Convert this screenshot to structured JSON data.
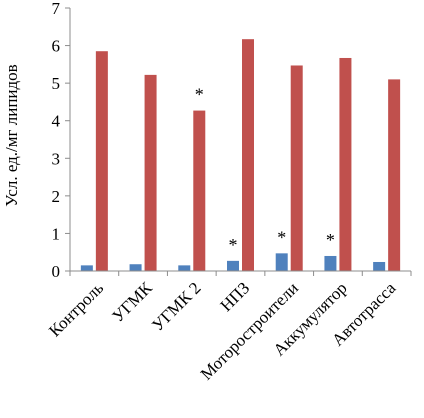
{
  "chart_data": {
    "type": "bar",
    "title": "",
    "ylabel": "Усл. ед./мг липидов",
    "xlabel": "",
    "ylim": [
      0,
      7
    ],
    "yticks": [
      0,
      1,
      2,
      3,
      4,
      5,
      6,
      7
    ],
    "grid": false,
    "legend": "none",
    "categories": [
      "Контроль",
      "УГМК",
      "УГМК 2",
      "НПЗ",
      "Моторостроители",
      "Аккумулятор",
      "Автотрасса"
    ],
    "series": [
      {
        "values": [
          0.15,
          0.18,
          0.15,
          0.27,
          0.47,
          0.4,
          0.24
        ],
        "color": "#4F81BD"
      },
      {
        "values": [
          5.85,
          5.22,
          4.27,
          6.17,
          5.47,
          5.67,
          5.1
        ],
        "color": "#C0504D"
      }
    ],
    "annotations": [
      {
        "category": "УГМК 2",
        "series": 1,
        "text": "*"
      },
      {
        "category": "НПЗ",
        "series": 0,
        "text": "*"
      },
      {
        "category": "Моторостроители",
        "series": 0,
        "text": "*"
      },
      {
        "category": "Аккумулятор",
        "series": 0,
        "text": "*"
      }
    ]
  }
}
